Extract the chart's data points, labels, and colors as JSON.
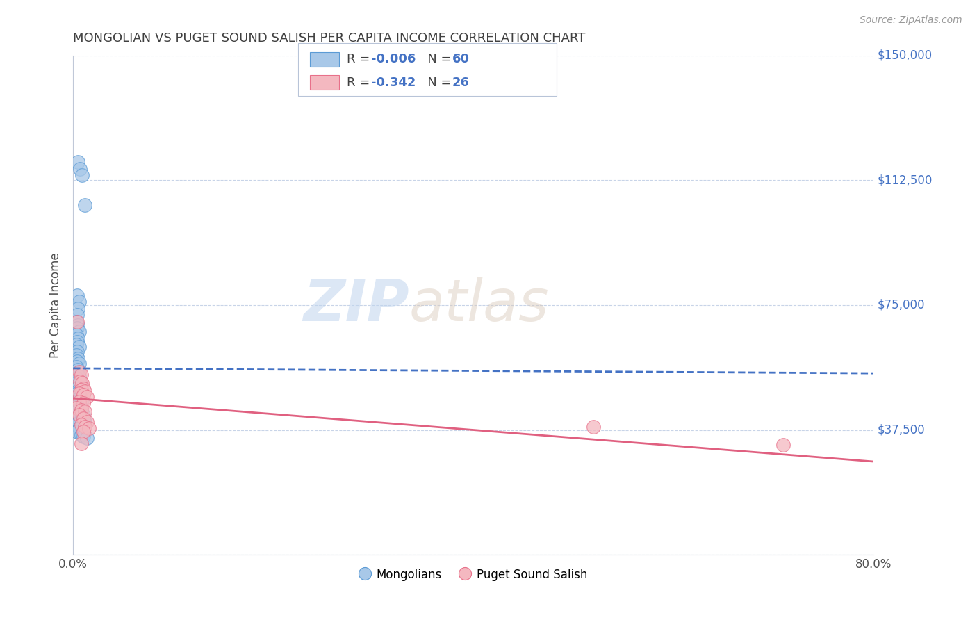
{
  "title": "MONGOLIAN VS PUGET SOUND SALISH PER CAPITA INCOME CORRELATION CHART",
  "source": "Source: ZipAtlas.com",
  "ylabel": "Per Capita Income",
  "yticks": [
    0,
    37500,
    75000,
    112500,
    150000
  ],
  "ytick_labels": [
    "",
    "$37,500",
    "$75,000",
    "$112,500",
    "$150,000"
  ],
  "xlim": [
    0.0,
    0.8
  ],
  "ylim": [
    0,
    150000
  ],
  "legend_blue_r": "R = ",
  "legend_blue_r_val": "-0.006",
  "legend_blue_n": "   N = ",
  "legend_blue_n_val": "60",
  "legend_pink_r": "R = ",
  "legend_pink_r_val": "-0.342",
  "legend_pink_n": "   N = ",
  "legend_pink_n_val": "26",
  "watermark_zip": "ZIP",
  "watermark_atlas": "atlas",
  "blue_color": "#a8c8e8",
  "blue_edge_color": "#5b9bd5",
  "pink_color": "#f4b8c0",
  "pink_edge_color": "#e8708a",
  "blue_line_color": "#4472c4",
  "pink_line_color": "#e06080",
  "value_color": "#4472c4",
  "background_color": "#ffffff",
  "grid_color": "#c8d4e8",
  "title_color": "#404040",
  "axis_label_color": "#505050",
  "right_yaxis_color": "#4472c4",
  "blue_scatter": [
    [
      0.005,
      118000
    ],
    [
      0.007,
      116000
    ],
    [
      0.009,
      114000
    ],
    [
      0.012,
      105000
    ],
    [
      0.004,
      78000
    ],
    [
      0.006,
      76000
    ],
    [
      0.005,
      74000
    ],
    [
      0.004,
      72000
    ],
    [
      0.003,
      70000
    ],
    [
      0.005,
      69000
    ],
    [
      0.004,
      68000
    ],
    [
      0.006,
      67000
    ],
    [
      0.003,
      66000
    ],
    [
      0.005,
      65000
    ],
    [
      0.004,
      64000
    ],
    [
      0.003,
      63000
    ],
    [
      0.006,
      62500
    ],
    [
      0.004,
      61000
    ],
    [
      0.003,
      60000
    ],
    [
      0.005,
      59000
    ],
    [
      0.004,
      58000
    ],
    [
      0.006,
      57500
    ],
    [
      0.003,
      56500
    ],
    [
      0.005,
      55500
    ],
    [
      0.004,
      54500
    ],
    [
      0.006,
      53500
    ],
    [
      0.003,
      53000
    ],
    [
      0.005,
      52000
    ],
    [
      0.007,
      51500
    ],
    [
      0.004,
      51000
    ],
    [
      0.006,
      50500
    ],
    [
      0.003,
      50000
    ],
    [
      0.008,
      49500
    ],
    [
      0.005,
      49000
    ],
    [
      0.004,
      48500
    ],
    [
      0.007,
      48000
    ],
    [
      0.003,
      47500
    ],
    [
      0.006,
      47000
    ],
    [
      0.009,
      46500
    ],
    [
      0.004,
      46000
    ],
    [
      0.006,
      45500
    ],
    [
      0.005,
      45000
    ],
    [
      0.003,
      44500
    ],
    [
      0.008,
      44000
    ],
    [
      0.005,
      43500
    ],
    [
      0.004,
      43000
    ],
    [
      0.007,
      42500
    ],
    [
      0.01,
      42000
    ],
    [
      0.006,
      41500
    ],
    [
      0.004,
      41000
    ],
    [
      0.008,
      40500
    ],
    [
      0.012,
      40000
    ],
    [
      0.005,
      39500
    ],
    [
      0.003,
      39000
    ],
    [
      0.009,
      38500
    ],
    [
      0.006,
      38000
    ],
    [
      0.004,
      37000
    ],
    [
      0.008,
      36000
    ],
    [
      0.01,
      35500
    ],
    [
      0.014,
      35000
    ]
  ],
  "pink_scatter": [
    [
      0.004,
      70000
    ],
    [
      0.006,
      55000
    ],
    [
      0.008,
      54000
    ],
    [
      0.007,
      52000
    ],
    [
      0.009,
      51500
    ],
    [
      0.01,
      50000
    ],
    [
      0.008,
      49500
    ],
    [
      0.012,
      49000
    ],
    [
      0.006,
      48500
    ],
    [
      0.01,
      48000
    ],
    [
      0.014,
      47500
    ],
    [
      0.006,
      46000
    ],
    [
      0.01,
      45500
    ],
    [
      0.003,
      44000
    ],
    [
      0.008,
      43500
    ],
    [
      0.012,
      43000
    ],
    [
      0.006,
      42000
    ],
    [
      0.01,
      41000
    ],
    [
      0.014,
      40000
    ],
    [
      0.008,
      39000
    ],
    [
      0.012,
      38500
    ],
    [
      0.016,
      38000
    ],
    [
      0.01,
      37000
    ],
    [
      0.008,
      33500
    ],
    [
      0.52,
      38500
    ],
    [
      0.71,
      33000
    ]
  ],
  "blue_trendline_x": [
    0.0,
    0.8
  ],
  "blue_trendline_y": [
    56000,
    54500
  ],
  "pink_trendline_x": [
    0.0,
    0.8
  ],
  "pink_trendline_y": [
    47000,
    28000
  ]
}
